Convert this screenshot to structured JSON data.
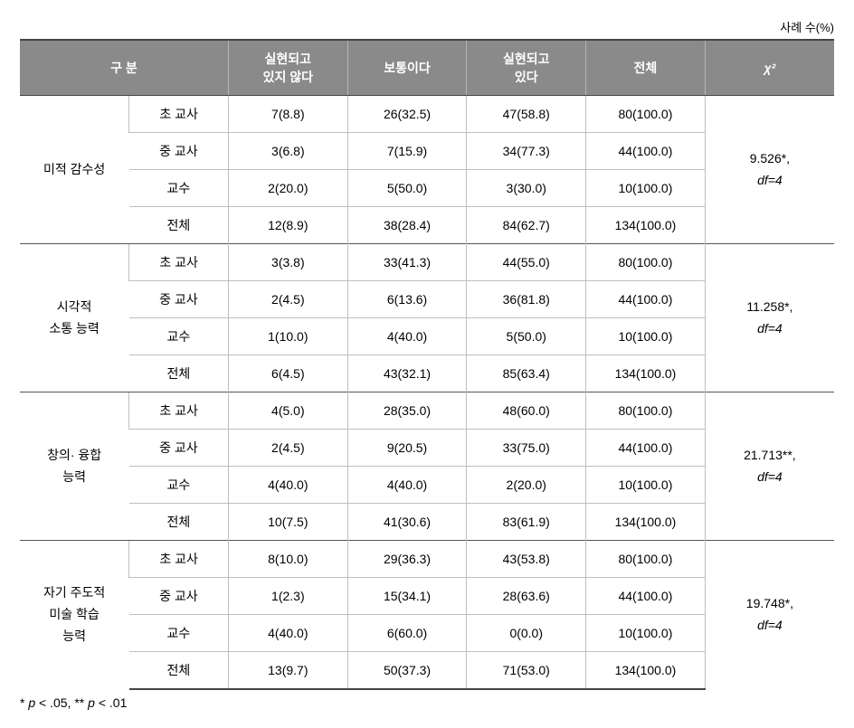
{
  "caption": "사례 수(%)",
  "headers": {
    "gubun": "구 분",
    "col1": "실현되고\n있지 않다",
    "col2": "보통이다",
    "col3": "실현되고\n있다",
    "col4": "전체",
    "chi": "χ²"
  },
  "rowLabels": {
    "cho": "초 교사",
    "jung": "중 교사",
    "gyosu": "교수",
    "total": "전체"
  },
  "sections": [
    {
      "label": "미적 감수성",
      "rows": [
        {
          "key": "cho",
          "c1": "7(8.8)",
          "c2": "26(32.5)",
          "c3": "47(58.8)",
          "c4": "80(100.0)"
        },
        {
          "key": "jung",
          "c1": "3(6.8)",
          "c2": "7(15.9)",
          "c3": "34(77.3)",
          "c4": "44(100.0)"
        },
        {
          "key": "gyosu",
          "c1": "2(20.0)",
          "c2": "5(50.0)",
          "c3": "3(30.0)",
          "c4": "10(100.0)"
        },
        {
          "key": "total",
          "c1": "12(8.9)",
          "c2": "38(28.4)",
          "c3": "84(62.7)",
          "c4": "134(100.0)"
        }
      ],
      "chi_value": "9.526*,",
      "chi_df": "df=4"
    },
    {
      "label": "시각적\n소통 능력",
      "rows": [
        {
          "key": "cho",
          "c1": "3(3.8)",
          "c2": "33(41.3)",
          "c3": "44(55.0)",
          "c4": "80(100.0)"
        },
        {
          "key": "jung",
          "c1": "2(4.5)",
          "c2": "6(13.6)",
          "c3": "36(81.8)",
          "c4": "44(100.0)"
        },
        {
          "key": "gyosu",
          "c1": "1(10.0)",
          "c2": "4(40.0)",
          "c3": "5(50.0)",
          "c4": "10(100.0)"
        },
        {
          "key": "total",
          "c1": "6(4.5)",
          "c2": "43(32.1)",
          "c3": "85(63.4)",
          "c4": "134(100.0)"
        }
      ],
      "chi_value": "11.258*,",
      "chi_df": "df=4"
    },
    {
      "label": "창의· 융합\n능력",
      "rows": [
        {
          "key": "cho",
          "c1": "4(5.0)",
          "c2": "28(35.0)",
          "c3": "48(60.0)",
          "c4": "80(100.0)"
        },
        {
          "key": "jung",
          "c1": "2(4.5)",
          "c2": "9(20.5)",
          "c3": "33(75.0)",
          "c4": "44(100.0)"
        },
        {
          "key": "gyosu",
          "c1": "4(40.0)",
          "c2": "4(40.0)",
          "c3": "2(20.0)",
          "c4": "10(100.0)"
        },
        {
          "key": "total",
          "c1": "10(7.5)",
          "c2": "41(30.6)",
          "c3": "83(61.9)",
          "c4": "134(100.0)"
        }
      ],
      "chi_value": "21.713**,",
      "chi_df": "df=4"
    },
    {
      "label": "자기 주도적\n미술 학습\n능력",
      "rows": [
        {
          "key": "cho",
          "c1": "8(10.0)",
          "c2": "29(36.3)",
          "c3": "43(53.8)",
          "c4": "80(100.0)"
        },
        {
          "key": "jung",
          "c1": "1(2.3)",
          "c2": "15(34.1)",
          "c3": "28(63.6)",
          "c4": "44(100.0)"
        },
        {
          "key": "gyosu",
          "c1": "4(40.0)",
          "c2": "6(60.0)",
          "c3": "0(0.0)",
          "c4": "10(100.0)"
        },
        {
          "key": "total",
          "c1": "13(9.7)",
          "c2": "50(37.3)",
          "c3": "71(53.0)",
          "c4": "134(100.0)"
        }
      ],
      "chi_value": "19.748*,",
      "chi_df": "df=4"
    }
  ],
  "footnote": {
    "star1": "* ",
    "p1": "p",
    "lt1": " < .05, ",
    "star2": "** ",
    "p2": "p",
    "lt2": " < .01"
  }
}
